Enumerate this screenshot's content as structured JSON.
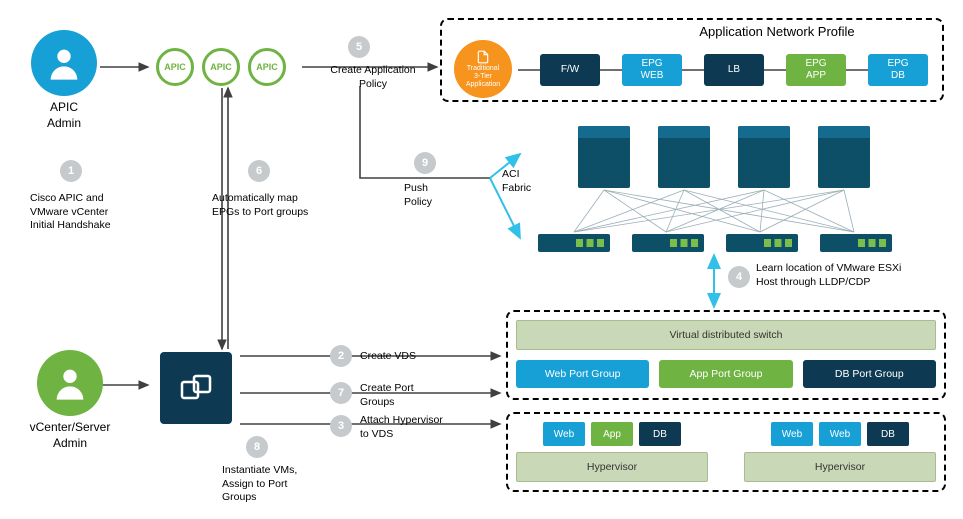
{
  "colors": {
    "blue": "#17a0d6",
    "darknavy": "#0d3a52",
    "green": "#6fb342",
    "greenDark": "#5a9a38",
    "orange": "#f7941e",
    "teal": "#2aa5c9",
    "pastelGreen": "#9dc07f",
    "badge": "#c7cacc"
  },
  "apic_admin": {
    "label": "APIC\nAdmin",
    "color": "#17a0d6"
  },
  "vcenter_admin": {
    "label": "vCenter/Server\nAdmin",
    "color": "#6fb342"
  },
  "apic_rings": [
    {
      "label": "APIC",
      "color": "#6fb342"
    },
    {
      "label": "APIC",
      "color": "#6fb342"
    },
    {
      "label": "APIC",
      "color": "#6fb342"
    }
  ],
  "steps": {
    "s1": {
      "num": "1",
      "text": "Cisco APIC and\nVMware vCenter\nInitial Handshake"
    },
    "s2": {
      "num": "2",
      "text": "Create VDS"
    },
    "s3": {
      "num": "3",
      "text": "Attach Hypervisor\nto VDS"
    },
    "s4": {
      "num": "4",
      "text": "Learn location of VMware ESXi\nHost through LLDP/CDP"
    },
    "s5": {
      "num": "5",
      "text": "Create Application\nPolicy"
    },
    "s6": {
      "num": "6",
      "text": "Automatically map\nEPGs to Port groups"
    },
    "s7": {
      "num": "7",
      "text": "Create Port\nGroups"
    },
    "s8": {
      "num": "8",
      "text": "Instantiate VMs,\nAssign to Port\nGroups"
    },
    "s9": {
      "num": "9",
      "text": "Push\nPolicy"
    }
  },
  "anp": {
    "title": "Application Network Profile",
    "app_circle": "Traditional\n3-Tier\nApplication",
    "blocks": [
      {
        "label": "F/W",
        "color": "#0d3a52"
      },
      {
        "label": "EPG\nWEB",
        "color": "#17a0d6"
      },
      {
        "label": "LB",
        "color": "#0d3a52"
      },
      {
        "label": "EPG\nAPP",
        "color": "#6fb342"
      },
      {
        "label": "EPG\nDB",
        "color": "#17a0d6"
      }
    ]
  },
  "aci_label": "ACI\nFabric",
  "vds": {
    "title": "Virtual distributed switch",
    "groups": [
      {
        "label": "Web Port Group",
        "color": "#17a0d6"
      },
      {
        "label": "App Port Group",
        "color": "#6fb342"
      },
      {
        "label": "DB Port Group",
        "color": "#0d3a52"
      }
    ]
  },
  "hypervisors": [
    {
      "label": "Hypervisor",
      "chips": [
        {
          "label": "Web",
          "color": "#17a0d6"
        },
        {
          "label": "App",
          "color": "#6fb342"
        },
        {
          "label": "DB",
          "color": "#0d3a52"
        }
      ]
    },
    {
      "label": "Hypervisor",
      "chips": [
        {
          "label": "Web",
          "color": "#17a0d6"
        },
        {
          "label": "Web",
          "color": "#17a0d6"
        },
        {
          "label": "DB",
          "color": "#0d3a52"
        }
      ]
    }
  ]
}
